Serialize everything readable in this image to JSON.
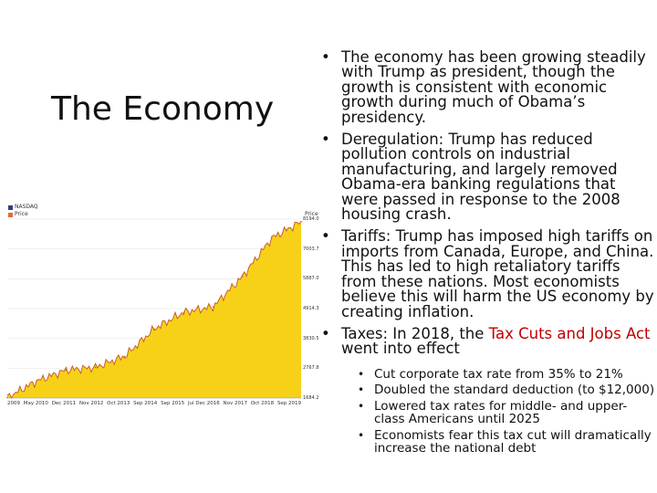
{
  "slide": {
    "title": "The Economy",
    "bullets": [
      "The economy has been growing steadily with Trump as president, though the growth is consistent with economic growth during much of Obama’s presidency.",
      "Deregulation: Trump has reduced pollution controls on industrial manufacturing, and largely removed Obama-era banking regulations that were passed in response to the 2008 housing crash.",
      "Tariffs: Trump has imposed high tariffs on imports from Canada, Europe, and China. This has led to high retaliatory tariffs from these nations. Most economists believe this will harm the US economy by creating inflation."
    ],
    "tax_bullet": {
      "prefix": "Taxes: In 2018, the ",
      "highlight": "Tax Cuts and Jobs Act",
      "suffix": " went into effect"
    },
    "sub_bullets": [
      "Cut corporate tax rate from 35% to 21%",
      "Doubled the standard deduction (to $12,000)",
      "Lowered tax rates for middle- and upper-class Americans until 2025",
      "Economists fear this tax cut will dramatically increase the national debt"
    ],
    "bullet_glyph": "•",
    "colors": {
      "highlight": "#c00000",
      "area_fill": "#f7d117",
      "line": "#c8612a"
    }
  },
  "chart_data": {
    "type": "area",
    "legend": [
      "NASDAQ",
      "Price"
    ],
    "ylabel": "Price",
    "yticks": [
      "8194.0",
      "7003.7",
      "5887.0",
      "4914.3",
      "3830.5",
      "2767.8",
      "1684.2"
    ],
    "ylim": [
      1684.2,
      8194.0
    ],
    "x": [
      "2009",
      "2010",
      "2011",
      "2012",
      "2013",
      "2014",
      "2015",
      "2016",
      "2017",
      "2018",
      "2019"
    ],
    "xtick_labels": [
      "2009",
      "May 2010",
      "Dec 2011",
      "Nov 2012",
      "Oct 2013",
      "Sep 2014",
      "Sep 2015",
      "Jul Dec 2016",
      "Nov 2017",
      "Oct 2018",
      "Sep 2019"
    ],
    "series": [
      {
        "name": "Price",
        "values": [
          1700,
          2300,
          2700,
          2800,
          3200,
          4200,
          4800,
          5000,
          6100,
          7500,
          8100
        ]
      }
    ]
  }
}
